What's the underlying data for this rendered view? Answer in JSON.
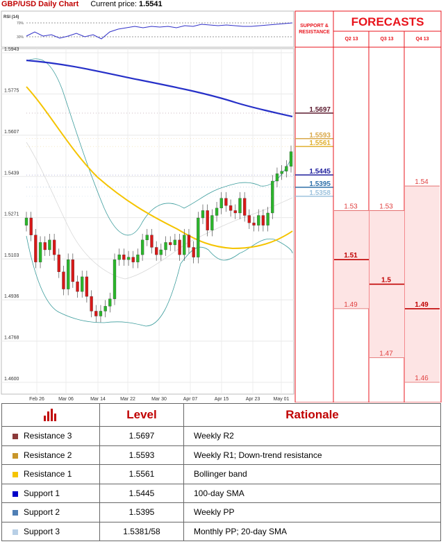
{
  "header": {
    "title": "GBP/USD Daily Chart",
    "price_label": "Current price:",
    "price_value": "1.5541"
  },
  "rsi": {
    "label": "RSI (14)",
    "ticks": [
      "70%",
      "30%"
    ]
  },
  "chart_data": {
    "type": "line",
    "x_labels": [
      "Feb 26",
      "Mar 06",
      "Mar 14",
      "Mar 22",
      "Mar 30",
      "Apr 07",
      "Apr 15",
      "Apr 23",
      "May 01"
    ],
    "y_ticks": [
      1.5943,
      1.5775,
      1.5607,
      1.5439,
      1.5271,
      1.5103,
      1.4936,
      1.4768,
      1.46
    ],
    "ylim": [
      1.46,
      1.5943
    ],
    "levels": [
      {
        "value": "1.5697",
        "color": "#5b1a2e"
      },
      {
        "value": "1.5593",
        "color": "#d9a84a"
      },
      {
        "value": "1.5561",
        "color": "#e0b030"
      },
      {
        "value": "1.5445",
        "color": "#1c1c9c"
      },
      {
        "value": "1.5395",
        "color": "#2e6fa8"
      },
      {
        "value": "1.5358",
        "color": "#9ec3dd"
      }
    ]
  },
  "support_resistance_title": "SUPPORT & RESISTANCE",
  "forecasts": {
    "title": "FORECASTS",
    "quarters": [
      {
        "label": "Q2 13",
        "values": [
          "1.53",
          "1.51",
          "1.49"
        ],
        "levels": [
          1.53,
          1.51,
          1.49
        ]
      },
      {
        "label": "Q3 13",
        "values": [
          "1.53",
          "1.5",
          "1.47"
        ],
        "levels": [
          1.53,
          1.5,
          1.47
        ]
      },
      {
        "label": "Q4 13",
        "values": [
          "1.54",
          "1.49",
          "1.46"
        ],
        "levels": [
          1.54,
          1.49,
          1.46
        ]
      }
    ]
  },
  "table": {
    "headers": [
      "",
      "Level",
      "Rationale"
    ],
    "rows": [
      {
        "name": "Resistance 3",
        "level": "1.5697",
        "rationale": "Weekly R2",
        "color": "#8b3a3a"
      },
      {
        "name": "Resistance 2",
        "level": "1.5593",
        "rationale": "Weekly R1; Down-trend resistance",
        "color": "#c8962a"
      },
      {
        "name": "Resistance 1",
        "level": "1.5561",
        "rationale": "Bollinger band",
        "color": "#f5c400"
      },
      {
        "name": "Support 1",
        "level": "1.5445",
        "rationale": "100-day SMA",
        "color": "#0000c8"
      },
      {
        "name": "Support 2",
        "level": "1.5395",
        "rationale": "Weekly PP",
        "color": "#4f7fb5"
      },
      {
        "name": "Support 3",
        "level": "1.5381/58",
        "rationale": "Monthly PP; 20-day SMA",
        "color": "#b8cfe6"
      }
    ]
  }
}
